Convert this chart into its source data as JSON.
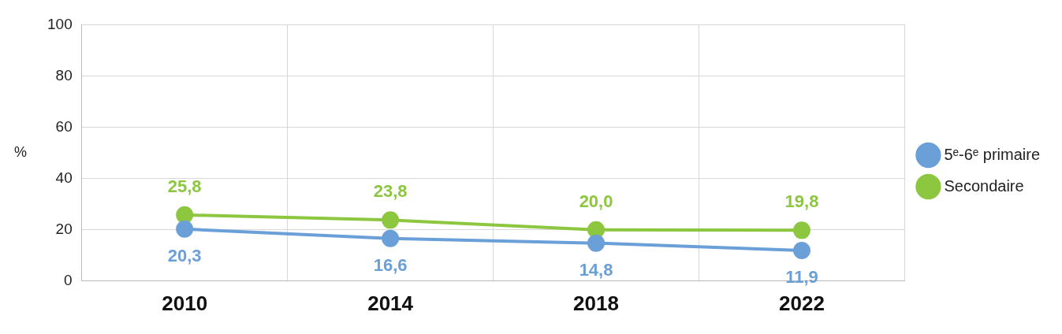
{
  "chart_data": {
    "type": "line",
    "ylabel": "%",
    "categories": [
      "2010",
      "2014",
      "2018",
      "2022"
    ],
    "series": [
      {
        "name": "5ᵉ-6ᵉ primaire",
        "color": "#6a9fd8",
        "values": [
          20.3,
          16.6,
          14.8,
          11.9
        ],
        "value_labels": [
          "20,3",
          "16,6",
          "14,8",
          "11,9"
        ]
      },
      {
        "name": "Secondaire",
        "color": "#8dc63f",
        "values": [
          25.8,
          23.8,
          20.0,
          19.8
        ],
        "value_labels": [
          "25,8",
          "23,8",
          "20,0",
          "19,8"
        ]
      }
    ],
    "ylim": [
      0,
      100
    ],
    "yticks": [
      0,
      20,
      40,
      60,
      80,
      100
    ],
    "grid": true,
    "legend": "right",
    "marker": "circle",
    "line_style": "solid"
  }
}
